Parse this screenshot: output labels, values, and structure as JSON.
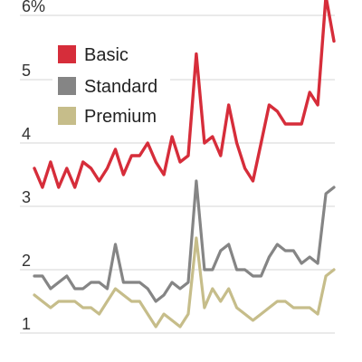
{
  "chart_data": {
    "type": "line",
    "title": "",
    "xlabel": "",
    "ylabel": "",
    "ylim": [
      0.8,
      6.3
    ],
    "yticks": [
      {
        "value": 1,
        "label": "1"
      },
      {
        "value": 2,
        "label": "2"
      },
      {
        "value": 3,
        "label": "3"
      },
      {
        "value": 4,
        "label": "4"
      },
      {
        "value": 5,
        "label": "5"
      },
      {
        "value": 6,
        "label": "6%"
      }
    ],
    "x": [
      1,
      2,
      3,
      4,
      5,
      6,
      7,
      8,
      9,
      10,
      11,
      12,
      13,
      14,
      15,
      16,
      17,
      18,
      19,
      20,
      21,
      22,
      23,
      24,
      25,
      26,
      27,
      28,
      29,
      30,
      31,
      32,
      33,
      34,
      35,
      36,
      37,
      38,
      39
    ],
    "grid": true,
    "legend_position": "top-left",
    "series": [
      {
        "name": "Basic",
        "color": "#d62d3a",
        "values": [
          3.6,
          3.3,
          3.7,
          3.3,
          3.6,
          3.3,
          3.7,
          3.6,
          3.4,
          3.6,
          3.9,
          3.5,
          3.8,
          3.8,
          4.0,
          3.7,
          3.5,
          4.1,
          3.7,
          3.8,
          5.4,
          4.0,
          4.1,
          3.8,
          4.6,
          4.0,
          3.6,
          3.4,
          4.0,
          4.6,
          4.5,
          4.3,
          4.3,
          4.3,
          4.8,
          4.6,
          6.3,
          5.6,
          null
        ]
      },
      {
        "name": "Standard",
        "color": "#858585",
        "values": [
          1.9,
          1.9,
          1.7,
          1.8,
          1.9,
          1.7,
          1.7,
          1.8,
          1.8,
          1.7,
          2.4,
          1.8,
          1.8,
          1.8,
          1.7,
          1.5,
          1.6,
          1.8,
          1.7,
          1.8,
          3.4,
          2.0,
          2.0,
          2.3,
          2.4,
          2.0,
          2.0,
          1.9,
          1.9,
          2.2,
          2.4,
          2.3,
          2.3,
          2.1,
          2.2,
          2.1,
          3.2,
          3.3,
          null
        ]
      },
      {
        "name": "Premium",
        "color": "#c6bd8a",
        "values": [
          1.6,
          1.5,
          1.4,
          1.5,
          1.5,
          1.5,
          1.4,
          1.4,
          1.3,
          1.5,
          1.7,
          1.6,
          1.5,
          1.5,
          1.3,
          1.1,
          1.3,
          1.2,
          1.1,
          1.3,
          2.5,
          1.4,
          1.7,
          1.5,
          1.7,
          1.4,
          1.3,
          1.2,
          1.3,
          1.4,
          1.5,
          1.5,
          1.4,
          1.4,
          1.4,
          1.3,
          1.9,
          2.0,
          null
        ]
      }
    ]
  }
}
